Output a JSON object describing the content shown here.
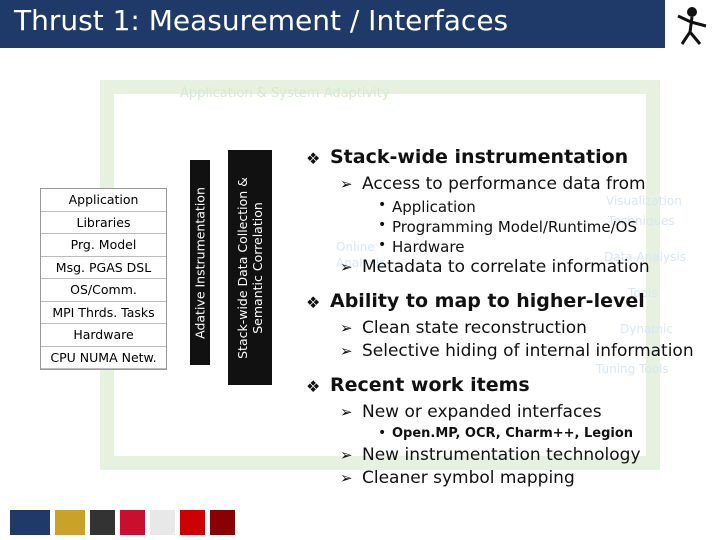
{
  "header": {
    "title": "Thrust 1: Measurement / Interfaces"
  },
  "diagram": {
    "top_label": "Application & System Adaptivity",
    "stack": [
      "Application",
      "Libraries",
      "Prg. Model",
      "Msg. PGAS DSL",
      "OS/Comm.",
      "MPI Thrds. Tasks",
      "Hardware",
      "CPU NUMA Netw."
    ],
    "vertical_labels": [
      "Adative Instrumentation",
      "Stack-wide Data Collection & Semantic Correlation"
    ],
    "faded_labels": [
      "Online",
      "Analysis",
      "Visualization",
      "Techniques",
      "Data Analysis",
      "Tools",
      "Dynamic",
      "Tuning Tools"
    ]
  },
  "bullets": [
    {
      "text": "Stack-wide instrumentation",
      "items": [
        {
          "text": "Access to performance data from",
          "items": [
            "Application",
            "Programming Model/Runtime/OS",
            "Hardware"
          ]
        },
        {
          "text": "Metadata to correlate information",
          "items": []
        }
      ]
    },
    {
      "text": "Ability to map to higher-level",
      "items": [
        {
          "text": "Clean state reconstruction",
          "items": []
        },
        {
          "text": "Selective hiding of internal information",
          "items": []
        }
      ]
    },
    {
      "text": "Recent work items",
      "items": [
        {
          "text": "New or expanded interfaces",
          "items": [
            "Open.MP, OCR, Charm++, Legion"
          ]
        },
        {
          "text": "New instrumentation technology",
          "items": []
        },
        {
          "text": "Cleaner symbol mapping",
          "items": []
        }
      ]
    }
  ]
}
